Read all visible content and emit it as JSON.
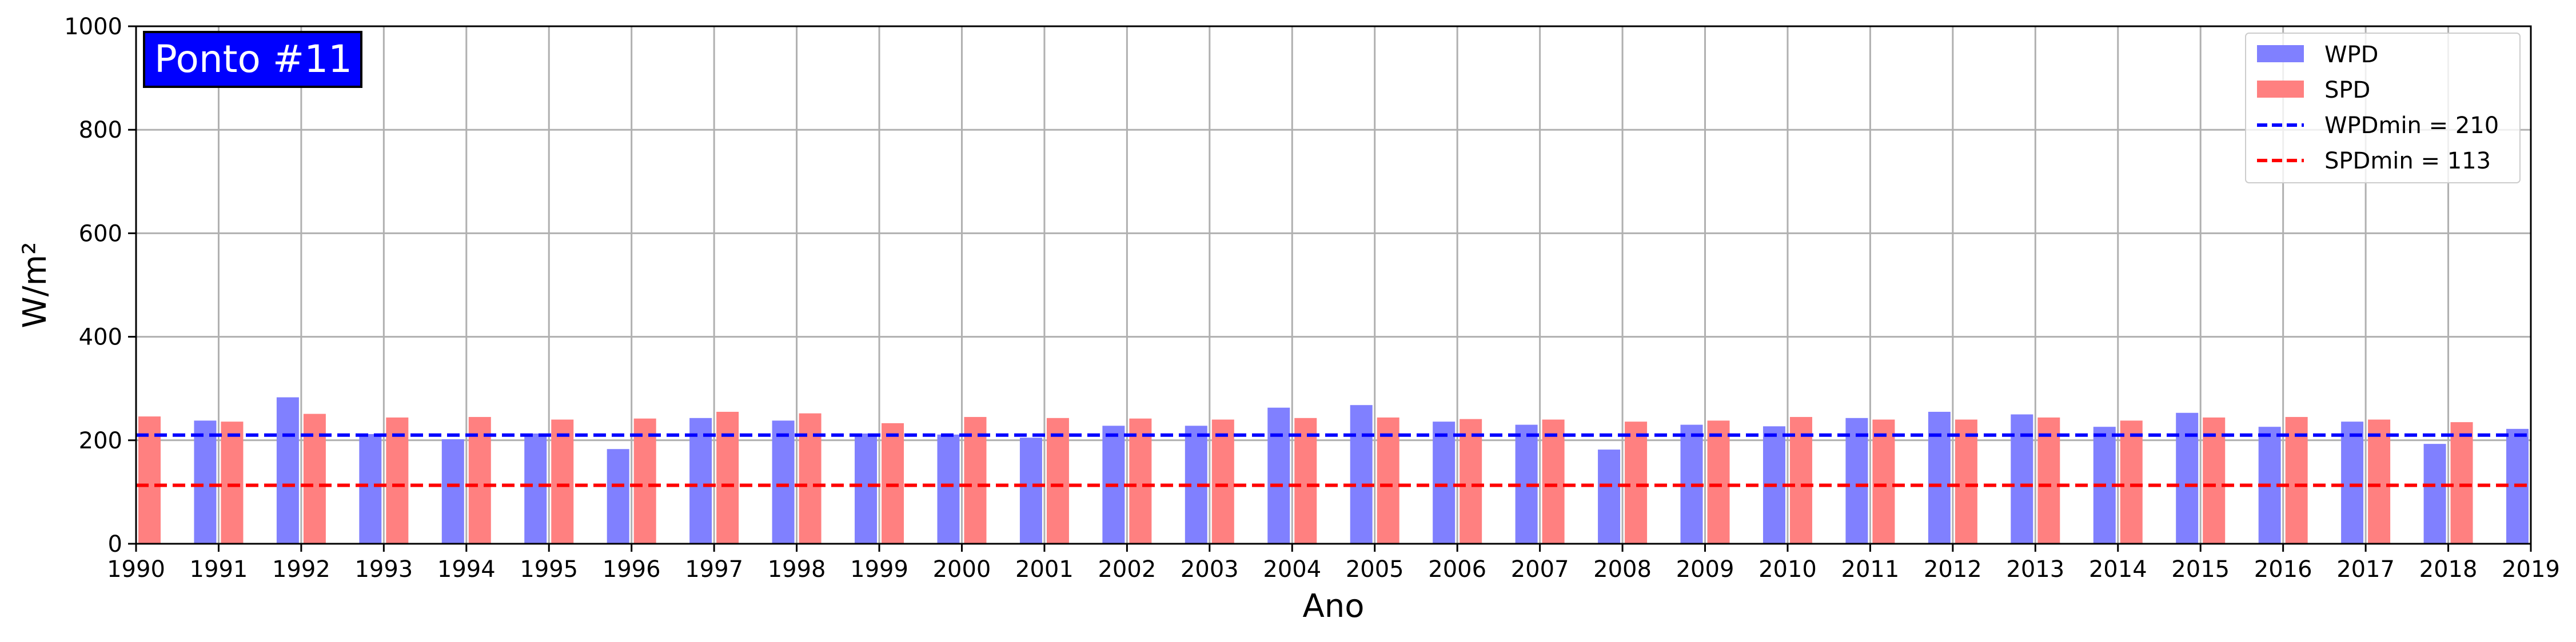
{
  "chart_data": {
    "type": "bar",
    "xlabel": "Ano",
    "ylabel": "W/m²",
    "ylim": [
      0,
      1000
    ],
    "yticks": [
      0,
      200,
      400,
      600,
      800,
      1000
    ],
    "xlim": [
      1990,
      2019
    ],
    "xticks": [
      "1990",
      "1991",
      "1992",
      "1993",
      "1994",
      "1995",
      "1996",
      "1997",
      "1998",
      "1999",
      "2000",
      "2001",
      "2002",
      "2003",
      "2004",
      "2005",
      "2006",
      "2007",
      "2008",
      "2009",
      "2010",
      "2011",
      "2012",
      "2013",
      "2014",
      "2015",
      "2016",
      "2017",
      "2018",
      "2019"
    ],
    "grid": true,
    "legend_position": "top-right",
    "annotation": {
      "text": "Ponto #11",
      "position": "top-left",
      "background": "#0000ff",
      "color": "#ffffff"
    },
    "categories": [
      "1990",
      "1991",
      "1992",
      "1993",
      "1994",
      "1995",
      "1996",
      "1997",
      "1998",
      "1999",
      "2000",
      "2001",
      "2002",
      "2003",
      "2004",
      "2005",
      "2006",
      "2007",
      "2008",
      "2009",
      "2010",
      "2011",
      "2012",
      "2013",
      "2014",
      "2015",
      "2016",
      "2017",
      "2018",
      "2019"
    ],
    "series": [
      {
        "name": "WPD",
        "color": "#8080ff",
        "values": [
          null,
          238,
          283,
          212,
          202,
          213,
          183,
          243,
          238,
          213,
          211,
          205,
          228,
          228,
          263,
          268,
          236,
          230,
          182,
          230,
          227,
          243,
          255,
          250,
          226,
          253,
          226,
          236,
          193,
          222
        ]
      },
      {
        "name": "SPD",
        "color": "#ff8080",
        "values": [
          246,
          236,
          251,
          244,
          245,
          240,
          242,
          255,
          252,
          233,
          245,
          243,
          242,
          240,
          243,
          244,
          241,
          240,
          236,
          238,
          245,
          240,
          240,
          244,
          238,
          244,
          245,
          240,
          235,
          null
        ]
      }
    ],
    "reference_lines": [
      {
        "name": "WPDmin = 210",
        "value": 210,
        "color": "#0000ff",
        "style": "dashed"
      },
      {
        "name": "SPDmin = 113",
        "value": 113,
        "color": "#ff0000",
        "style": "dashed"
      }
    ]
  }
}
